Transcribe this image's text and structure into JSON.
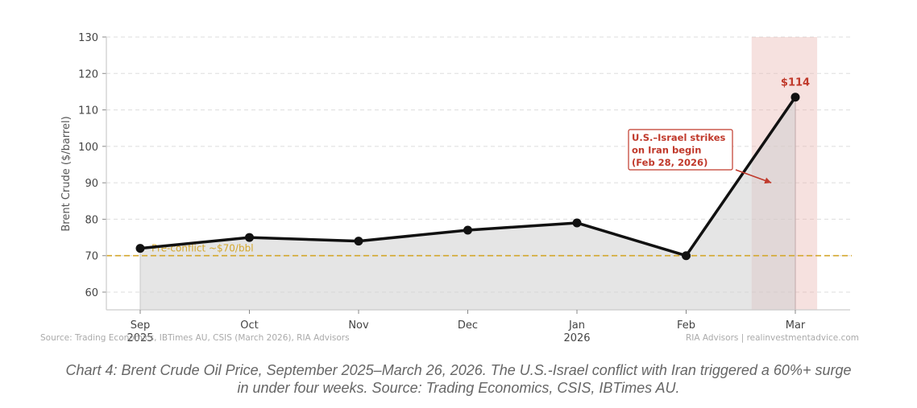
{
  "chart_data": {
    "type": "line",
    "title": "",
    "xlabel": "",
    "ylabel": "Brent Crude ($/barrel)",
    "ylim": [
      55,
      130
    ],
    "yticks": [
      60,
      70,
      80,
      90,
      100,
      110,
      120,
      130
    ],
    "grid": true,
    "categories": [
      "Sep 2025",
      "Oct",
      "Nov",
      "Dec",
      "Jan 2026",
      "Feb",
      "Mar"
    ],
    "x_tick_labels": [
      {
        "line1": "Sep",
        "line2": "2025"
      },
      {
        "line1": "Oct",
        "line2": ""
      },
      {
        "line1": "Nov",
        "line2": ""
      },
      {
        "line1": "Dec",
        "line2": ""
      },
      {
        "line1": "Jan",
        "line2": "2026"
      },
      {
        "line1": "Feb",
        "line2": ""
      },
      {
        "line1": "Mar",
        "line2": ""
      }
    ],
    "series": [
      {
        "name": "Brent Crude",
        "values": [
          72,
          75,
          74,
          77,
          79,
          70,
          113.5
        ],
        "color": "#111111",
        "fill": "#e5e5e5"
      }
    ],
    "reference_line": {
      "value": 70,
      "label": "Pre-conflict ~$70/bbl",
      "color": "#d4a72c"
    },
    "shaded_span": {
      "from_index": 5.6,
      "to_index": 6.2,
      "color": "#e8b4b0"
    },
    "annotations": [
      {
        "type": "value-label",
        "index": 6,
        "text": "$114",
        "color": "#c0392b"
      },
      {
        "type": "callout",
        "lines": [
          "U.S.–Israel strikes",
          "on Iran begin",
          "(Feb 28, 2026)"
        ],
        "arrow_to_index": 5.78,
        "arrow_to_value": 90,
        "color": "#c0392b"
      }
    ],
    "source_left": "Source: Trading Economics, IBTimes AU, CSIS (March 2026), RIA Advisors",
    "source_right": "RIA Advisors | realinvestmentadvice.com"
  },
  "caption": {
    "line1": "Chart 4: Brent Crude Oil Price, September 2025–March 26, 2026. The U.S.-Israel conflict with Iran triggered a 60%+ surge",
    "line2": "in under four weeks. Source: Trading Economics, CSIS, IBTimes AU."
  }
}
